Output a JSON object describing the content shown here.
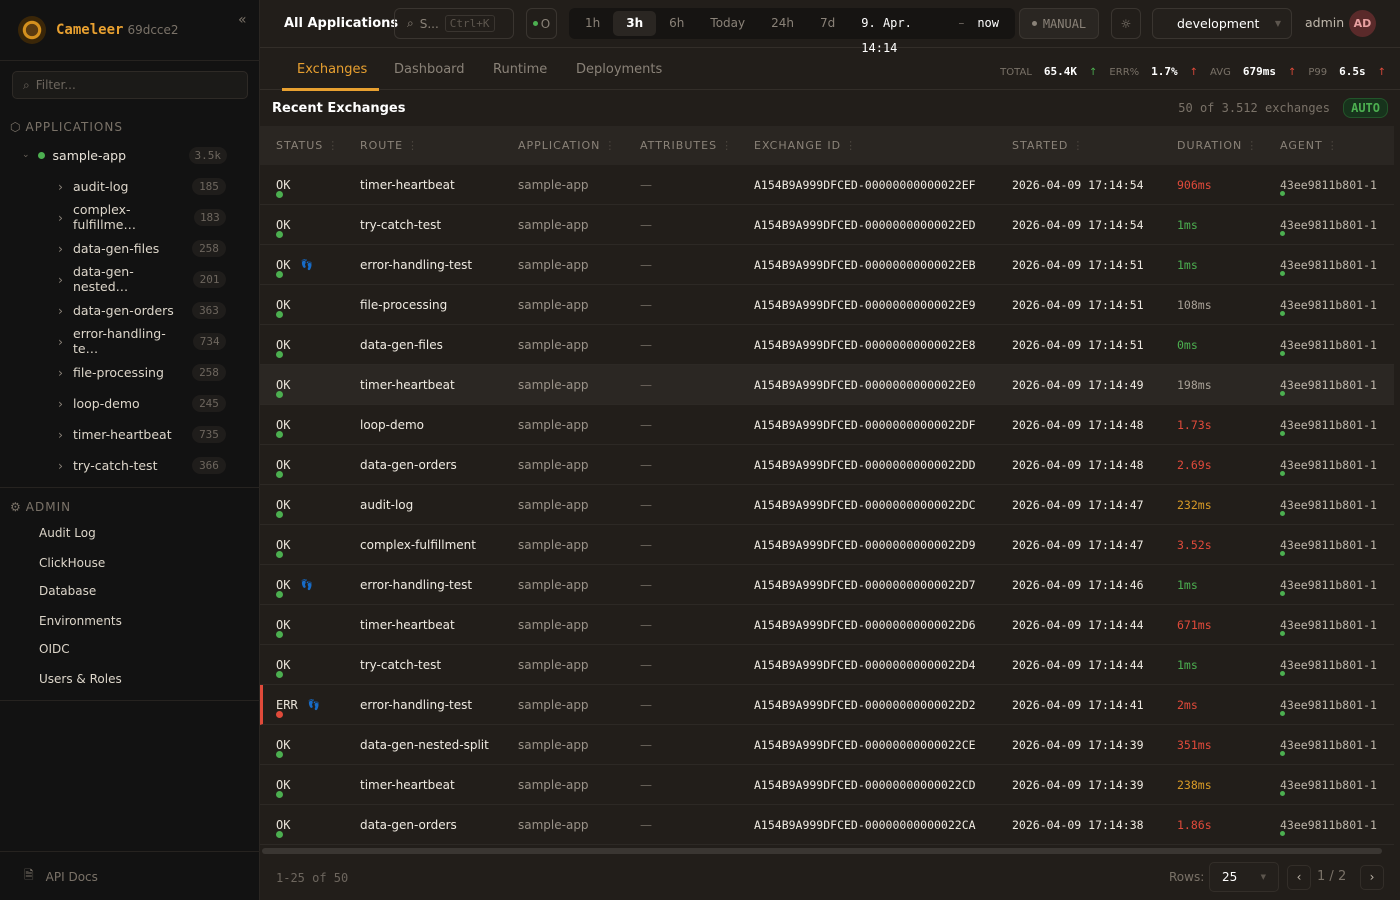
{
  "brand": {
    "name": "Cameleer",
    "version": "69dcce2"
  },
  "sidebar": {
    "filter_placeholder": "Filter...",
    "applications_title": "APPLICATIONS",
    "app": {
      "name": "sample-app",
      "count": "3.5k",
      "status_color": "#4caf50"
    },
    "routes": [
      {
        "name": "audit-log",
        "count": "185"
      },
      {
        "name": "complex-fulfillme…",
        "count": "183"
      },
      {
        "name": "data-gen-files",
        "count": "258"
      },
      {
        "name": "data-gen-nested…",
        "count": "201"
      },
      {
        "name": "data-gen-orders",
        "count": "363"
      },
      {
        "name": "error-handling-te…",
        "count": "734"
      },
      {
        "name": "file-processing",
        "count": "258"
      },
      {
        "name": "loop-demo",
        "count": "245"
      },
      {
        "name": "timer-heartbeat",
        "count": "735"
      },
      {
        "name": "try-catch-test",
        "count": "366"
      }
    ],
    "admin_title": "ADMIN",
    "admin_items": [
      "Audit Log",
      "ClickHouse",
      "Database",
      "Environments",
      "OIDC",
      "Users & Roles"
    ],
    "api_docs": "API Docs"
  },
  "topbar": {
    "scope": "All Applications",
    "search_placeholder": "S...",
    "search_shortcut": "Ctrl+K",
    "status_short": "O",
    "time_ranges": [
      "1h",
      "3h",
      "6h",
      "Today",
      "24h",
      "7d"
    ],
    "active_range": "3h",
    "range_from": "9. Apr. 14:14",
    "range_sep": "–",
    "range_to": "now",
    "refresh_mode": "MANUAL",
    "environment": "development",
    "user": "admin",
    "avatar": "AD"
  },
  "tabs": [
    "Exchanges",
    "Dashboard",
    "Runtime",
    "Deployments"
  ],
  "active_tab": "Exchanges",
  "kpis": {
    "total_label": "TOTAL",
    "total": "65.4K",
    "err_label": "ERR%",
    "err": "1.7%",
    "avg_label": "AVG",
    "avg": "679ms",
    "p99_label": "P99",
    "p99": "6.5s"
  },
  "section": {
    "title": "Recent Exchanges",
    "count": "50 of 3.512 exchanges",
    "live": "AUTO"
  },
  "table": {
    "columns": [
      "STATUS",
      "ROUTE",
      "APPLICATION",
      "ATTRIBUTES",
      "EXCHANGE ID",
      "STARTED",
      "DURATION",
      "AGENT"
    ],
    "rows": [
      {
        "status": "OK",
        "route": "timer-heartbeat",
        "app": "sample-app",
        "attr": "—",
        "id": "A154B9A999DFCED-00000000000022EF",
        "started": "2026-04-09 17:14:54",
        "duration": "906ms",
        "dur_level": "red",
        "agent": "43ee9811b801-1",
        "fp": false
      },
      {
        "status": "OK",
        "route": "try-catch-test",
        "app": "sample-app",
        "attr": "—",
        "id": "A154B9A999DFCED-00000000000022ED",
        "started": "2026-04-09 17:14:54",
        "duration": "1ms",
        "dur_level": "green",
        "agent": "43ee9811b801-1",
        "fp": false
      },
      {
        "status": "OK",
        "route": "error-handling-test",
        "app": "sample-app",
        "attr": "—",
        "id": "A154B9A999DFCED-00000000000022EB",
        "started": "2026-04-09 17:14:51",
        "duration": "1ms",
        "dur_level": "green",
        "agent": "43ee9811b801-1",
        "fp": true
      },
      {
        "status": "OK",
        "route": "file-processing",
        "app": "sample-app",
        "attr": "—",
        "id": "A154B9A999DFCED-00000000000022E9",
        "started": "2026-04-09 17:14:51",
        "duration": "108ms",
        "dur_level": "gray",
        "agent": "43ee9811b801-1",
        "fp": false
      },
      {
        "status": "OK",
        "route": "data-gen-files",
        "app": "sample-app",
        "attr": "—",
        "id": "A154B9A999DFCED-00000000000022E8",
        "started": "2026-04-09 17:14:51",
        "duration": "0ms",
        "dur_level": "green",
        "agent": "43ee9811b801-1",
        "fp": false
      },
      {
        "status": "OK",
        "route": "timer-heartbeat",
        "app": "sample-app",
        "attr": "—",
        "id": "A154B9A999DFCED-00000000000022E0",
        "started": "2026-04-09 17:14:49",
        "duration": "198ms",
        "dur_level": "gray",
        "agent": "43ee9811b801-1",
        "fp": false
      },
      {
        "status": "OK",
        "route": "loop-demo",
        "app": "sample-app",
        "attr": "—",
        "id": "A154B9A999DFCED-00000000000022DF",
        "started": "2026-04-09 17:14:48",
        "duration": "1.73s",
        "dur_level": "red",
        "agent": "43ee9811b801-1",
        "fp": false
      },
      {
        "status": "OK",
        "route": "data-gen-orders",
        "app": "sample-app",
        "attr": "—",
        "id": "A154B9A999DFCED-00000000000022DD",
        "started": "2026-04-09 17:14:48",
        "duration": "2.69s",
        "dur_level": "red",
        "agent": "43ee9811b801-1",
        "fp": false
      },
      {
        "status": "OK",
        "route": "audit-log",
        "app": "sample-app",
        "attr": "—",
        "id": "A154B9A999DFCED-00000000000022DC",
        "started": "2026-04-09 17:14:47",
        "duration": "232ms",
        "dur_level": "amber",
        "agent": "43ee9811b801-1",
        "fp": false
      },
      {
        "status": "OK",
        "route": "complex-fulfillment",
        "app": "sample-app",
        "attr": "—",
        "id": "A154B9A999DFCED-00000000000022D9",
        "started": "2026-04-09 17:14:47",
        "duration": "3.52s",
        "dur_level": "red",
        "agent": "43ee9811b801-1",
        "fp": false
      },
      {
        "status": "OK",
        "route": "error-handling-test",
        "app": "sample-app",
        "attr": "—",
        "id": "A154B9A999DFCED-00000000000022D7",
        "started": "2026-04-09 17:14:46",
        "duration": "1ms",
        "dur_level": "green",
        "agent": "43ee9811b801-1",
        "fp": true
      },
      {
        "status": "OK",
        "route": "timer-heartbeat",
        "app": "sample-app",
        "attr": "—",
        "id": "A154B9A999DFCED-00000000000022D6",
        "started": "2026-04-09 17:14:44",
        "duration": "671ms",
        "dur_level": "red",
        "agent": "43ee9811b801-1",
        "fp": false
      },
      {
        "status": "OK",
        "route": "try-catch-test",
        "app": "sample-app",
        "attr": "—",
        "id": "A154B9A999DFCED-00000000000022D4",
        "started": "2026-04-09 17:14:44",
        "duration": "1ms",
        "dur_level": "green",
        "agent": "43ee9811b801-1",
        "fp": false
      },
      {
        "status": "ERR",
        "route": "error-handling-test",
        "app": "sample-app",
        "attr": "—",
        "id": "A154B9A999DFCED-00000000000022D2",
        "started": "2026-04-09 17:14:41",
        "duration": "2ms",
        "dur_level": "red",
        "agent": "43ee9811b801-1",
        "fp": true
      },
      {
        "status": "OK",
        "route": "data-gen-nested-split",
        "app": "sample-app",
        "attr": "—",
        "id": "A154B9A999DFCED-00000000000022CE",
        "started": "2026-04-09 17:14:39",
        "duration": "351ms",
        "dur_level": "red",
        "agent": "43ee9811b801-1",
        "fp": false
      },
      {
        "status": "OK",
        "route": "timer-heartbeat",
        "app": "sample-app",
        "attr": "—",
        "id": "A154B9A999DFCED-00000000000022CD",
        "started": "2026-04-09 17:14:39",
        "duration": "238ms",
        "dur_level": "amber",
        "agent": "43ee9811b801-1",
        "fp": false
      },
      {
        "status": "OK",
        "route": "data-gen-orders",
        "app": "sample-app",
        "attr": "—",
        "id": "A154B9A999DFCED-00000000000022CA",
        "started": "2026-04-09 17:14:38",
        "duration": "1.86s",
        "dur_level": "red",
        "agent": "43ee9811b801-1",
        "fp": false
      }
    ]
  },
  "pagination": {
    "range": "1-25 of 50",
    "rows_label": "Rows:",
    "rows_value": "25",
    "page": "1",
    "sep": "/",
    "pages": "2"
  },
  "colors": {
    "accent": "#e8a030",
    "ok": "#4caf50",
    "error": "#e04a3a",
    "warn": "#d99a26"
  }
}
